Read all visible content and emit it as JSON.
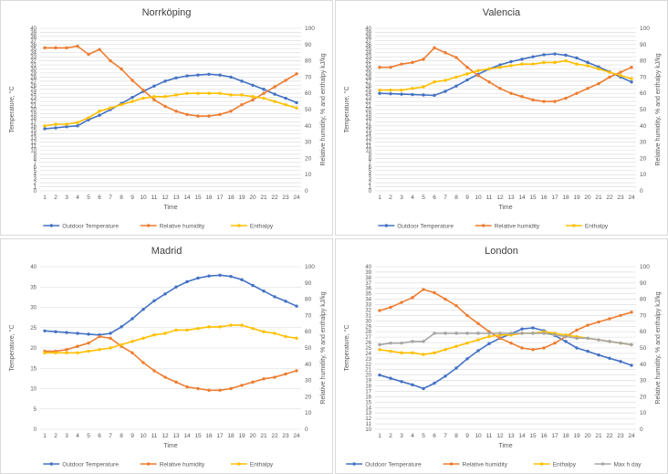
{
  "colors": {
    "outdoor_temperature": "#4472C4",
    "relative_humidity": "#ED7D31",
    "enthalpy": "#FFC000",
    "max_h_day": "#A5A5A5",
    "gridline": "#D9D9D9",
    "axis_text": "#595959"
  },
  "chart_data": [
    {
      "type": "line",
      "title": "Norrköping",
      "xlabel": "Time",
      "ylabel": "Temperature, °C",
      "y2label": "Relative humidity, % and enthalpy kJ/kg",
      "x": [
        1,
        2,
        3,
        4,
        5,
        6,
        7,
        8,
        9,
        10,
        11,
        12,
        13,
        14,
        15,
        16,
        17,
        18,
        19,
        20,
        21,
        22,
        23,
        24
      ],
      "ylim": [
        0,
        40
      ],
      "ystep": 1,
      "y2lim": [
        0,
        100
      ],
      "y2step": 10,
      "grid": true,
      "legend": "bottom",
      "series": [
        {
          "name": "Outdoor Temperature",
          "axis": "left",
          "color_key": "outdoor_temperature",
          "values": [
            15.3,
            15.5,
            15.8,
            16.0,
            17.5,
            18.6,
            20.0,
            21.5,
            23.0,
            24.5,
            25.8,
            27.0,
            27.8,
            28.3,
            28.5,
            28.7,
            28.5,
            28.0,
            27.0,
            26.0,
            25.0,
            23.8,
            22.8,
            21.7
          ]
        },
        {
          "name": "Relative humidity",
          "axis": "right",
          "color_key": "relative_humidity",
          "values": [
            88,
            88,
            88,
            89,
            84,
            87,
            80,
            75,
            68,
            62,
            56,
            52,
            49,
            47,
            46,
            46,
            47,
            49,
            53,
            56,
            60,
            64,
            68,
            72
          ]
        },
        {
          "name": "Enthalpy",
          "axis": "right",
          "color_key": "enthalpy",
          "values": [
            40,
            41,
            41,
            42,
            45,
            49,
            51,
            53,
            55,
            57,
            58,
            58,
            59,
            60,
            60,
            60,
            60,
            59,
            59,
            58,
            57,
            55,
            53,
            51
          ]
        }
      ]
    },
    {
      "type": "line",
      "title": "Valencia",
      "xlabel": "Time",
      "ylabel": "Temperature, °C",
      "y2label": "Relative humidity, % and enthalpy kJ/kg",
      "x": [
        1,
        2,
        3,
        4,
        5,
        6,
        7,
        8,
        9,
        10,
        11,
        12,
        13,
        14,
        15,
        16,
        17,
        18,
        19,
        20,
        21,
        22,
        23,
        24
      ],
      "ylim": [
        0,
        40
      ],
      "ystep": 1,
      "y2lim": [
        0,
        100
      ],
      "y2step": 10,
      "grid": true,
      "legend": "bottom",
      "series": [
        {
          "name": "Outdoor Temperature",
          "axis": "left",
          "color_key": "outdoor_temperature",
          "values": [
            24.0,
            23.9,
            23.8,
            23.7,
            23.6,
            23.5,
            24.5,
            25.8,
            27.3,
            28.7,
            30.0,
            31.0,
            31.8,
            32.4,
            33.0,
            33.5,
            33.7,
            33.4,
            32.7,
            31.6,
            30.5,
            29.3,
            28.0,
            26.8
          ]
        },
        {
          "name": "Relative humidity",
          "axis": "right",
          "color_key": "relative_humidity",
          "values": [
            76,
            76,
            78,
            79,
            81,
            88,
            85,
            82,
            76,
            71,
            67,
            63,
            60,
            58,
            56,
            55,
            55,
            57,
            60,
            63,
            66,
            70,
            73,
            76
          ]
        },
        {
          "name": "Enthalpy",
          "axis": "right",
          "color_key": "enthalpy",
          "values": [
            62,
            62,
            62,
            63,
            64,
            67,
            68,
            70,
            72,
            74,
            75,
            76,
            77,
            78,
            78,
            79,
            79,
            80,
            78,
            77,
            75,
            73,
            71,
            69
          ]
        }
      ]
    },
    {
      "type": "line",
      "title": "Madrid",
      "xlabel": "Time",
      "ylabel": "Temperature, °C",
      "y2label": "Relative humidity, % and enthalpy kJ/kg",
      "x": [
        1,
        2,
        3,
        4,
        5,
        6,
        7,
        8,
        9,
        10,
        11,
        12,
        13,
        14,
        15,
        16,
        17,
        18,
        19,
        20,
        21,
        22,
        23,
        24
      ],
      "ylim": [
        0,
        40
      ],
      "ystep": 5,
      "y2lim": [
        0,
        100
      ],
      "y2step": 10,
      "grid": true,
      "legend": "bottom",
      "series": [
        {
          "name": "Outdoor Temperature",
          "axis": "left",
          "color_key": "outdoor_temperature",
          "values": [
            24.2,
            24.0,
            23.8,
            23.6,
            23.4,
            23.2,
            23.6,
            25.2,
            27.2,
            29.5,
            31.6,
            33.3,
            35.0,
            36.3,
            37.2,
            37.7,
            37.9,
            37.6,
            36.8,
            35.4,
            34.0,
            32.6,
            31.5,
            30.3
          ]
        },
        {
          "name": "Relative humidity",
          "axis": "right",
          "color_key": "relative_humidity",
          "values": [
            48,
            48,
            49,
            51,
            53,
            57,
            56,
            51,
            47,
            41,
            36,
            32,
            29,
            26,
            25,
            24,
            24,
            25,
            27,
            29,
            31,
            32,
            34,
            36
          ]
        },
        {
          "name": "Enthalpy",
          "axis": "right",
          "color_key": "enthalpy",
          "values": [
            47,
            47,
            47,
            47,
            48,
            49,
            50,
            52,
            54,
            56,
            58,
            59,
            61,
            61,
            62,
            63,
            63,
            64,
            64,
            62,
            60,
            59,
            57,
            56
          ]
        }
      ]
    },
    {
      "type": "line",
      "title": "London",
      "xlabel": "Time",
      "ylabel": "Temperature, °C",
      "y2label": "Relative humidity, % and enthalpy kJ/kg",
      "x": [
        1,
        2,
        3,
        4,
        5,
        6,
        7,
        8,
        9,
        10,
        11,
        12,
        13,
        14,
        15,
        16,
        17,
        18,
        19,
        20,
        21,
        22,
        23,
        24
      ],
      "ylim": [
        10,
        40
      ],
      "ystep": 1,
      "y2lim": [
        0,
        100
      ],
      "y2step": 10,
      "grid": true,
      "legend": "bottom",
      "series": [
        {
          "name": "Outdoor Temperature",
          "axis": "left",
          "color_key": "outdoor_temperature",
          "values": [
            20.0,
            19.4,
            18.8,
            18.2,
            17.5,
            18.5,
            19.8,
            21.3,
            23.0,
            24.5,
            25.8,
            26.8,
            27.6,
            28.5,
            28.7,
            28.2,
            27.3,
            26.2,
            25.0,
            24.4,
            23.7,
            23.1,
            22.5,
            21.8
          ]
        },
        {
          "name": "Relative humidity",
          "axis": "right",
          "color_key": "relative_humidity",
          "values": [
            73,
            75,
            78,
            81,
            86,
            84,
            80,
            76,
            70,
            65,
            60,
            56,
            53,
            50,
            49,
            50,
            53,
            57,
            61,
            64,
            66,
            68,
            70,
            72
          ]
        },
        {
          "name": "Enthalpy",
          "axis": "right",
          "color_key": "enthalpy",
          "values": [
            49,
            48,
            47,
            47,
            46,
            47,
            49,
            51,
            53,
            55,
            57,
            58,
            58,
            59,
            59,
            60,
            59,
            58,
            57,
            56,
            55,
            54,
            53,
            52
          ]
        },
        {
          "name": "Max h day",
          "axis": "right",
          "color_key": "max_h_day",
          "values": [
            52,
            53,
            53,
            54,
            54,
            59,
            59,
            59,
            59,
            59,
            59,
            59,
            59,
            59,
            59,
            59,
            58,
            57,
            56,
            56,
            55,
            54,
            53,
            52
          ]
        }
      ]
    }
  ]
}
